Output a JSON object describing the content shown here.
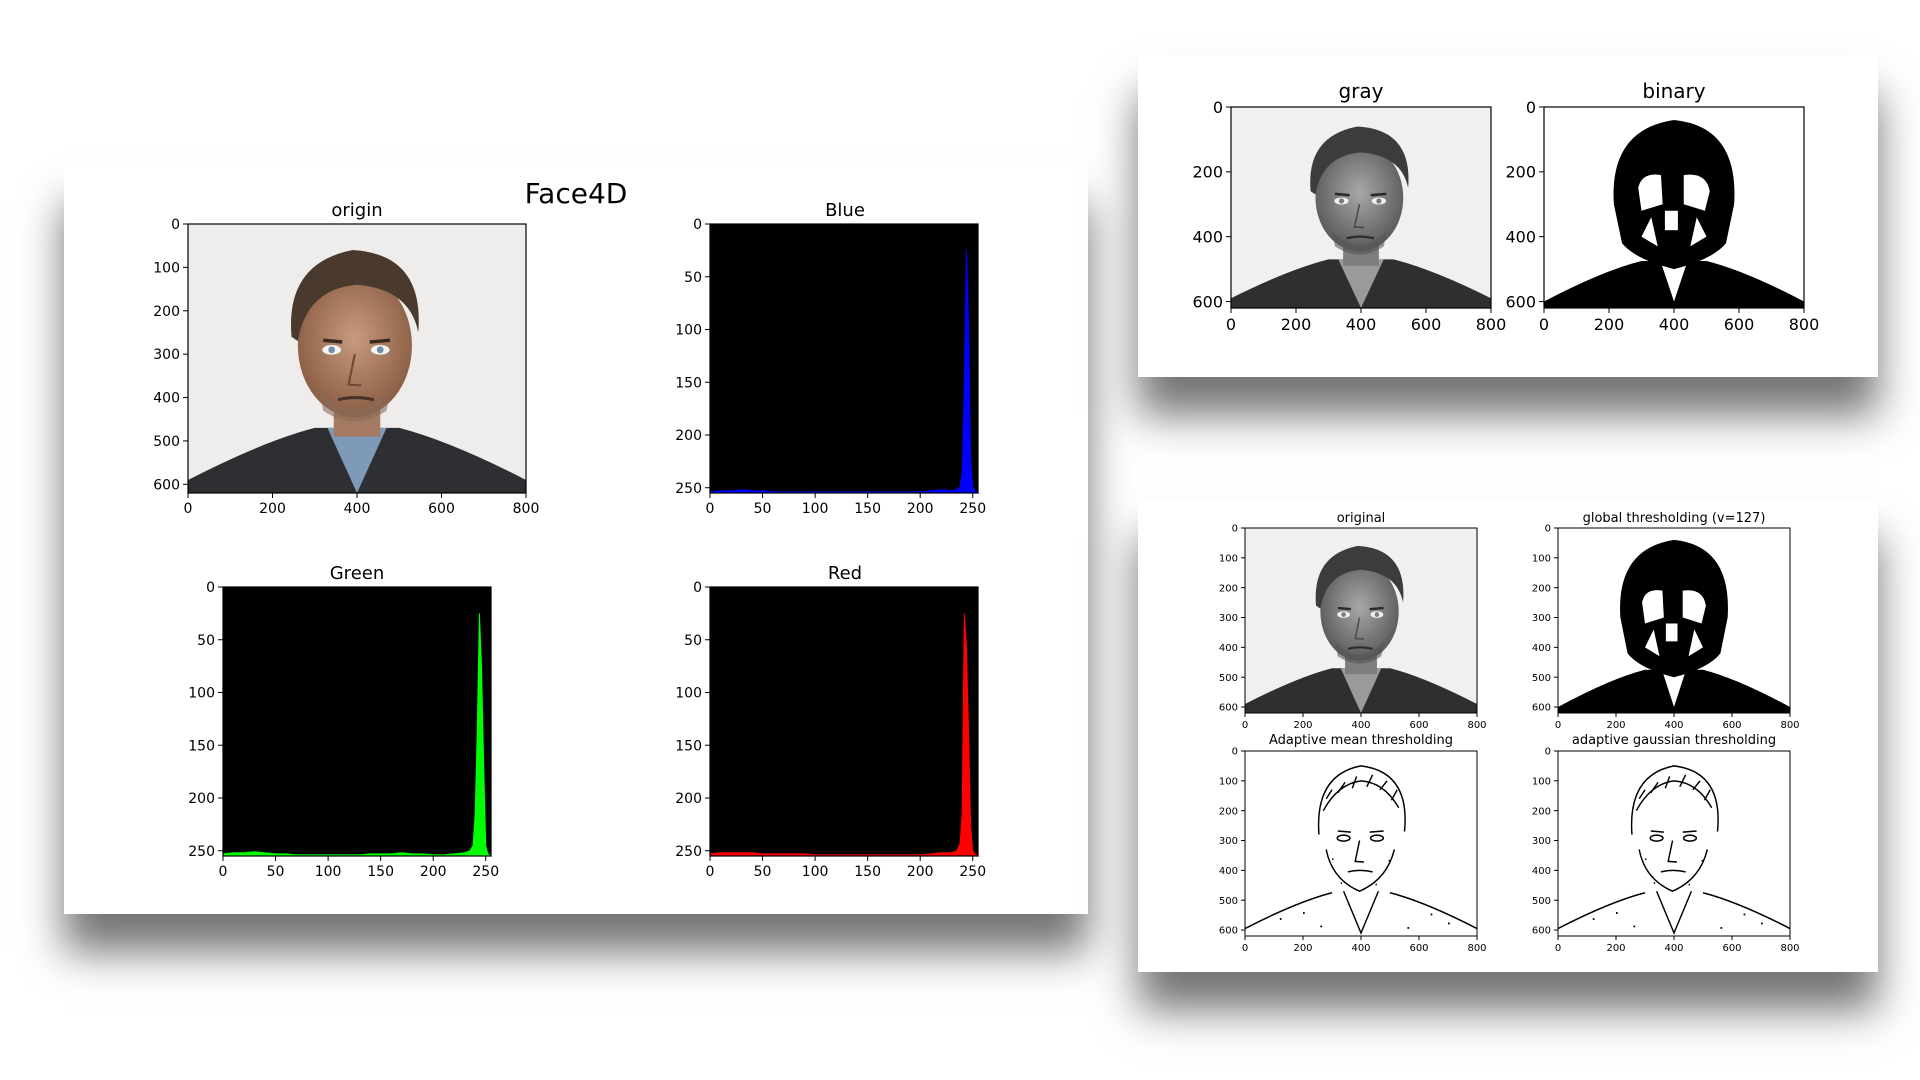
{
  "panels": {
    "main": {
      "suptitle": "Face4D",
      "subplots": [
        {
          "title": "origin",
          "kind": "image",
          "image": "color-portrait",
          "xticks": [
            0,
            200,
            400,
            600,
            800
          ],
          "yticks": [
            0,
            100,
            200,
            300,
            400,
            500,
            600
          ]
        },
        {
          "title": "Blue",
          "kind": "hist",
          "color": "#0000ff",
          "xticks": [
            0,
            50,
            100,
            150,
            200,
            250
          ],
          "yticks": [
            0,
            50,
            100,
            150,
            200,
            250
          ]
        },
        {
          "title": "Green",
          "kind": "hist",
          "color": "#00ff00",
          "xticks": [
            0,
            50,
            100,
            150,
            200,
            250
          ],
          "yticks": [
            0,
            50,
            100,
            150,
            200,
            250
          ]
        },
        {
          "title": "Red",
          "kind": "hist",
          "color": "#ff0000",
          "xticks": [
            0,
            50,
            100,
            150,
            200,
            250
          ],
          "yticks": [
            0,
            50,
            100,
            150,
            200,
            250
          ]
        }
      ]
    },
    "graybin": {
      "subplots": [
        {
          "title": "gray",
          "kind": "image",
          "image": "gray-portrait",
          "xticks": [
            0,
            200,
            400,
            600,
            800
          ],
          "yticks": [
            0,
            200,
            400,
            600
          ]
        },
        {
          "title": "binary",
          "kind": "image",
          "image": "binary-portrait",
          "xticks": [
            0,
            200,
            400,
            600,
            800
          ],
          "yticks": [
            0,
            200,
            400,
            600
          ]
        }
      ]
    },
    "thresholds": {
      "subplots": [
        {
          "title": "original",
          "kind": "image",
          "image": "gray-portrait",
          "xticks": [
            0,
            200,
            400,
            600,
            800
          ],
          "yticks": [
            0,
            100,
            200,
            300,
            400,
            500,
            600
          ]
        },
        {
          "title": "global thresholding (v=127)",
          "kind": "image",
          "image": "binary-portrait",
          "xticks": [
            0,
            200,
            400,
            600,
            800
          ],
          "yticks": [
            0,
            100,
            200,
            300,
            400,
            500,
            600
          ]
        },
        {
          "title": "Adaptive mean thresholding",
          "kind": "image",
          "image": "edge-portrait",
          "xticks": [
            0,
            200,
            400,
            600,
            800
          ],
          "yticks": [
            0,
            100,
            200,
            300,
            400,
            500,
            600
          ]
        },
        {
          "title": "adaptive gaussian thresholding",
          "kind": "image",
          "image": "edge-portrait",
          "xticks": [
            0,
            200,
            400,
            600,
            800
          ],
          "yticks": [
            0,
            100,
            200,
            300,
            400,
            500,
            600
          ]
        }
      ]
    }
  },
  "chart_data": [
    {
      "type": "image",
      "title": "origin",
      "xlim": [
        0,
        800
      ],
      "ylim": [
        620,
        0
      ]
    },
    {
      "type": "area",
      "title": "Blue",
      "color": "#0000ff",
      "xlim": [
        0,
        255
      ],
      "ylim": [
        255,
        0
      ],
      "x": [
        0,
        10,
        20,
        30,
        40,
        50,
        60,
        70,
        80,
        90,
        100,
        110,
        120,
        130,
        140,
        150,
        160,
        170,
        180,
        190,
        200,
        210,
        220,
        230,
        235,
        238,
        240,
        242,
        244,
        246,
        248,
        250,
        252,
        255
      ],
      "values": [
        1,
        2,
        2,
        3,
        2,
        2,
        1,
        1,
        1,
        1,
        1,
        1,
        1,
        1,
        1,
        1,
        1,
        1,
        1,
        1,
        1,
        2,
        3,
        2,
        3,
        6,
        20,
        100,
        230,
        165,
        30,
        5,
        2,
        0
      ]
    },
    {
      "type": "area",
      "title": "Green",
      "color": "#00ff00",
      "xlim": [
        0,
        255
      ],
      "ylim": [
        255,
        0
      ],
      "x": [
        0,
        10,
        20,
        30,
        40,
        50,
        60,
        70,
        80,
        90,
        100,
        110,
        120,
        130,
        140,
        150,
        160,
        170,
        180,
        190,
        200,
        210,
        220,
        230,
        235,
        238,
        240,
        242,
        244,
        246,
        248,
        250,
        252,
        255
      ],
      "values": [
        2,
        3,
        3,
        4,
        3,
        2,
        2,
        1,
        1,
        1,
        1,
        1,
        1,
        1,
        2,
        2,
        2,
        3,
        2,
        2,
        1,
        1,
        2,
        3,
        5,
        10,
        40,
        120,
        230,
        180,
        90,
        10,
        2,
        0
      ]
    },
    {
      "type": "area",
      "title": "Red",
      "color": "#ff0000",
      "xlim": [
        0,
        255
      ],
      "ylim": [
        255,
        0
      ],
      "x": [
        0,
        10,
        20,
        30,
        40,
        50,
        60,
        70,
        80,
        90,
        100,
        110,
        120,
        130,
        140,
        150,
        160,
        170,
        180,
        190,
        200,
        210,
        220,
        230,
        235,
        238,
        240,
        242,
        244,
        246,
        248,
        250,
        252,
        255
      ],
      "values": [
        2,
        3,
        3,
        3,
        3,
        2,
        2,
        2,
        2,
        2,
        1,
        1,
        1,
        1,
        1,
        1,
        1,
        1,
        1,
        1,
        1,
        2,
        3,
        3,
        5,
        12,
        40,
        230,
        200,
        120,
        30,
        5,
        2,
        0
      ]
    },
    {
      "type": "image",
      "title": "gray",
      "xlim": [
        0,
        800
      ],
      "ylim": [
        620,
        0
      ]
    },
    {
      "type": "image",
      "title": "binary",
      "xlim": [
        0,
        800
      ],
      "ylim": [
        620,
        0
      ]
    },
    {
      "type": "image",
      "title": "original",
      "xlim": [
        0,
        800
      ],
      "ylim": [
        620,
        0
      ]
    },
    {
      "type": "image",
      "title": "global thresholding (v=127)",
      "xlim": [
        0,
        800
      ],
      "ylim": [
        620,
        0
      ]
    },
    {
      "type": "image",
      "title": "Adaptive mean thresholding",
      "xlim": [
        0,
        800
      ],
      "ylim": [
        620,
        0
      ]
    },
    {
      "type": "image",
      "title": "adaptive gaussian thresholding",
      "xlim": [
        0,
        800
      ],
      "ylim": [
        620,
        0
      ]
    }
  ]
}
